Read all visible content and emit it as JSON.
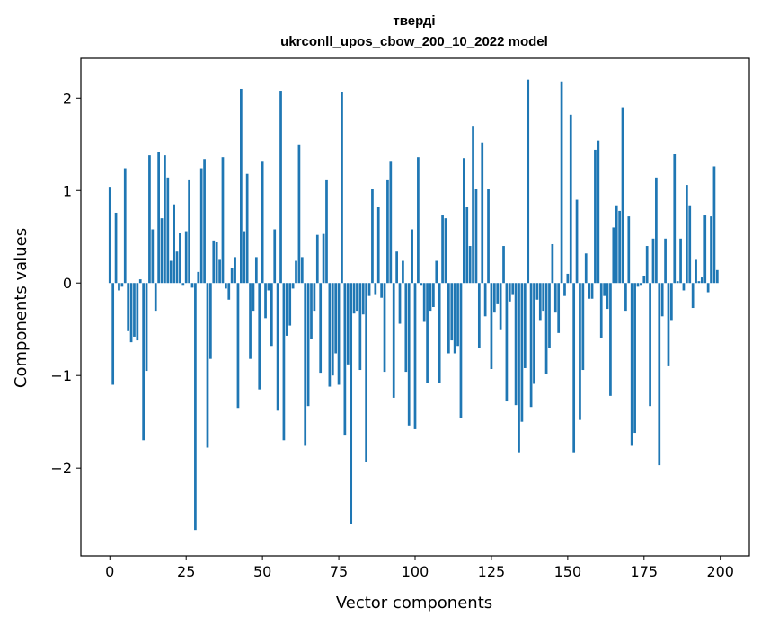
{
  "chart_data": {
    "type": "bar",
    "title": "тверді",
    "subtitle": "ukrconll_upos_cbow_200_10_2022 model",
    "xlabel": "Vector components",
    "ylabel": "Components values",
    "xlim": [
      -9.5,
      209.5
    ],
    "ylim": [
      -2.95,
      2.43
    ],
    "xticks": [
      0,
      25,
      50,
      75,
      100,
      125,
      150,
      175,
      200
    ],
    "yticks": [
      -2,
      -1,
      0,
      1,
      2
    ],
    "ytick_labels": [
      "−2",
      "−1",
      "0",
      "1",
      "2"
    ],
    "grid": false,
    "color": "#1f77b4",
    "x": [
      0,
      1,
      2,
      3,
      4,
      5,
      6,
      7,
      8,
      9,
      10,
      11,
      12,
      13,
      14,
      15,
      16,
      17,
      18,
      19,
      20,
      21,
      22,
      23,
      24,
      25,
      26,
      27,
      28,
      29,
      30,
      31,
      32,
      33,
      34,
      35,
      36,
      37,
      38,
      39,
      40,
      41,
      42,
      43,
      44,
      45,
      46,
      47,
      48,
      49,
      50,
      51,
      52,
      53,
      54,
      55,
      56,
      57,
      58,
      59,
      60,
      61,
      62,
      63,
      64,
      65,
      66,
      67,
      68,
      69,
      70,
      71,
      72,
      73,
      74,
      75,
      76,
      77,
      78,
      79,
      80,
      81,
      82,
      83,
      84,
      85,
      86,
      87,
      88,
      89,
      90,
      91,
      92,
      93,
      94,
      95,
      96,
      97,
      98,
      99,
      100,
      101,
      102,
      103,
      104,
      105,
      106,
      107,
      108,
      109,
      110,
      111,
      112,
      113,
      114,
      115,
      116,
      117,
      118,
      119,
      120,
      121,
      122,
      123,
      124,
      125,
      126,
      127,
      128,
      129,
      130,
      131,
      132,
      133,
      134,
      135,
      136,
      137,
      138,
      139,
      140,
      141,
      142,
      143,
      144,
      145,
      146,
      147,
      148,
      149,
      150,
      151,
      152,
      153,
      154,
      155,
      156,
      157,
      158,
      159,
      160,
      161,
      162,
      163,
      164,
      165,
      166,
      167,
      168,
      169,
      170,
      171,
      172,
      173,
      174,
      175,
      176,
      177,
      178,
      179,
      180,
      181,
      182,
      183,
      184,
      185,
      186,
      187,
      188,
      189,
      190,
      191,
      192,
      193,
      194,
      195,
      196,
      197,
      198,
      199
    ],
    "values": [
      1.04,
      -1.1,
      0.76,
      -0.08,
      -0.04,
      1.24,
      -0.52,
      -0.64,
      -0.58,
      -0.62,
      0.04,
      -1.7,
      -0.95,
      1.38,
      0.58,
      -0.3,
      1.42,
      0.7,
      1.38,
      1.14,
      0.24,
      0.85,
      0.34,
      0.54,
      -0.02,
      0.56,
      1.12,
      -0.05,
      -2.67,
      0.12,
      1.24,
      1.34,
      -1.78,
      -0.82,
      0.46,
      0.44,
      0.26,
      1.36,
      -0.06,
      -0.18,
      0.16,
      0.28,
      -1.35,
      2.1,
      0.56,
      1.18,
      -0.82,
      -0.3,
      0.28,
      -1.15,
      1.32,
      -0.38,
      -0.08,
      -0.68,
      0.58,
      -1.38,
      2.08,
      -1.7,
      -0.57,
      -0.46,
      -0.06,
      0.24,
      1.5,
      0.28,
      -1.76,
      -1.33,
      -0.6,
      -0.3,
      0.52,
      -0.97,
      0.53,
      1.12,
      -1.12,
      -1.0,
      -0.76,
      -1.1,
      2.07,
      -1.64,
      -0.88,
      -2.61,
      -0.33,
      -0.3,
      -0.94,
      -0.34,
      -1.94,
      -0.14,
      1.02,
      -0.12,
      0.82,
      -0.16,
      -0.96,
      1.12,
      1.32,
      -1.24,
      0.34,
      -0.44,
      0.24,
      -0.96,
      -1.54,
      0.58,
      -1.58,
      1.36,
      -0.02,
      -0.42,
      -1.08,
      -0.3,
      -0.26,
      0.24,
      -1.08,
      0.74,
      0.7,
      -0.76,
      -0.62,
      -0.76,
      -0.68,
      -1.46,
      1.35,
      0.82,
      0.4,
      1.7,
      1.02,
      -0.7,
      1.52,
      -0.36,
      1.02,
      -0.93,
      -0.32,
      -0.22,
      -0.5,
      0.4,
      -1.28,
      -0.2,
      -0.12,
      -1.32,
      -1.83,
      -1.5,
      -0.92,
      2.2,
      -1.34,
      -1.09,
      -0.18,
      -0.4,
      -0.3,
      -0.98,
      -0.7,
      0.42,
      -0.32,
      -0.54,
      2.18,
      -0.14,
      0.1,
      1.82,
      -1.83,
      0.9,
      -1.48,
      -0.94,
      0.32,
      -0.17,
      -0.17,
      1.44,
      1.54,
      -0.59,
      -0.14,
      -0.28,
      -1.22,
      0.6,
      0.84,
      0.78,
      1.9,
      -0.3,
      0.72,
      -1.76,
      -1.62,
      -0.04,
      -0.02,
      0.08,
      0.4,
      -1.33,
      0.48,
      1.14,
      -1.97,
      -0.36,
      0.48,
      -0.9,
      -0.4,
      1.4,
      0.02,
      0.48,
      -0.08,
      1.06,
      0.84,
      -0.27,
      0.26,
      0.02,
      0.06,
      0.74,
      -0.1,
      0.72,
      1.26,
      0.14
    ]
  }
}
